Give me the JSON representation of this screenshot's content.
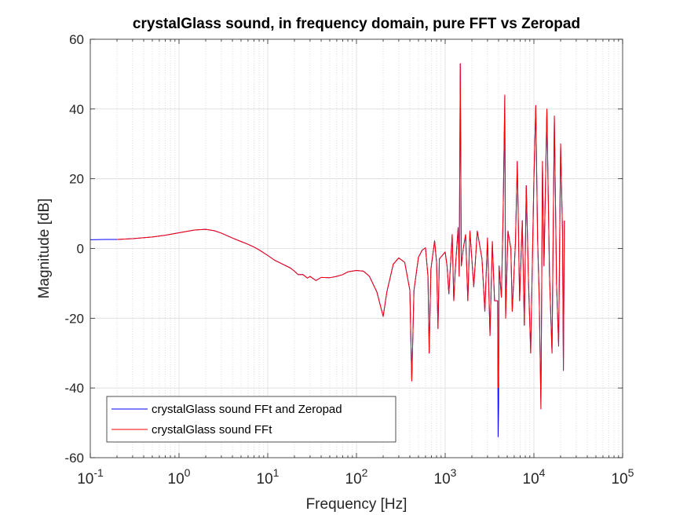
{
  "chart_data": {
    "type": "line",
    "title": "crystalGlass sound, in frequency domain, pure FFT vs Zeropad",
    "xlabel": "Frequency [Hz]",
    "ylabel": "Magnitude [dB]",
    "x_scale": "log",
    "xlim": [
      0.1,
      100000
    ],
    "ylim": [
      -60,
      60
    ],
    "x_ticks": [
      {
        "value": 0.1,
        "base": "10",
        "exp": "-1"
      },
      {
        "value": 1,
        "base": "10",
        "exp": "0"
      },
      {
        "value": 10,
        "base": "10",
        "exp": "1"
      },
      {
        "value": 100,
        "base": "10",
        "exp": "2"
      },
      {
        "value": 1000,
        "base": "10",
        "exp": "3"
      },
      {
        "value": 10000,
        "base": "10",
        "exp": "4"
      },
      {
        "value": 100000,
        "base": "10",
        "exp": "5"
      }
    ],
    "y_ticks": [
      {
        "value": -60,
        "label": "-60"
      },
      {
        "value": -40,
        "label": "-40"
      },
      {
        "value": -20,
        "label": "-20"
      },
      {
        "value": 0,
        "label": "0"
      },
      {
        "value": 20,
        "label": "20"
      },
      {
        "value": 40,
        "label": "40"
      },
      {
        "value": 60,
        "label": "60"
      }
    ],
    "grid": true,
    "minor_grid": true,
    "legend_position": "bottom-left",
    "series": [
      {
        "name": "crystalGlass sound FFt and Zeropad",
        "color": "#0000ff",
        "points": [
          [
            0.1,
            2.5
          ],
          [
            0.15,
            2.6
          ],
          [
            0.2,
            2.6
          ],
          [
            0.3,
            2.8
          ],
          [
            0.5,
            3.3
          ],
          [
            0.7,
            3.8
          ],
          [
            1,
            4.5
          ],
          [
            1.5,
            5.3
          ],
          [
            2,
            5.5
          ],
          [
            2.5,
            5.1
          ],
          [
            3,
            4.4
          ],
          [
            4,
            3
          ],
          [
            5,
            2
          ],
          [
            6,
            1.2
          ],
          [
            7,
            0.4
          ],
          [
            8,
            -0.4
          ],
          [
            10,
            -2
          ],
          [
            12,
            -3.4
          ],
          [
            15,
            -4.6
          ],
          [
            18,
            -5.6
          ],
          [
            20,
            -6.5
          ],
          [
            22,
            -7.5
          ],
          [
            25,
            -7.5
          ],
          [
            28,
            -8.5
          ],
          [
            30,
            -8
          ],
          [
            35,
            -9.2
          ],
          [
            40,
            -8.3
          ],
          [
            50,
            -8.4
          ],
          [
            60,
            -8
          ],
          [
            70,
            -7.5
          ],
          [
            80,
            -6.7
          ],
          [
            100,
            -6.3
          ],
          [
            120,
            -6.5
          ],
          [
            140,
            -8
          ],
          [
            170,
            -12.5
          ],
          [
            200,
            -19.5
          ],
          [
            220,
            -12.5
          ],
          [
            260,
            -4.5
          ],
          [
            300,
            -2.7
          ],
          [
            350,
            -4
          ],
          [
            400,
            -12
          ],
          [
            420,
            -38
          ],
          [
            445,
            -12
          ],
          [
            500,
            -2.5
          ],
          [
            550,
            -0.5
          ],
          [
            600,
            0.2
          ],
          [
            640,
            -8
          ],
          [
            660,
            -30
          ],
          [
            690,
            -6
          ],
          [
            760,
            2.2
          ],
          [
            800,
            -4
          ],
          [
            830,
            -23
          ],
          [
            860,
            -3
          ],
          [
            1000,
            -1
          ],
          [
            1050,
            -5
          ],
          [
            1100,
            -13
          ],
          [
            1200,
            4
          ],
          [
            1250,
            -15
          ],
          [
            1300,
            -6
          ],
          [
            1400,
            6
          ],
          [
            1440,
            -8
          ],
          [
            1480,
            53
          ],
          [
            1520,
            -5
          ],
          [
            1600,
            0
          ],
          [
            1700,
            4
          ],
          [
            1800,
            -15
          ],
          [
            1900,
            5
          ],
          [
            2100,
            -11
          ],
          [
            2300,
            5
          ],
          [
            2600,
            -3
          ],
          [
            2800,
            -18
          ],
          [
            3000,
            3
          ],
          [
            3200,
            -25
          ],
          [
            3400,
            2
          ],
          [
            3600,
            -15
          ],
          [
            3900,
            -15
          ],
          [
            3950,
            -54
          ],
          [
            4000,
            -45
          ],
          [
            4050,
            -5
          ],
          [
            4300,
            -14
          ],
          [
            4500,
            10
          ],
          [
            4700,
            44
          ],
          [
            4800,
            -20
          ],
          [
            5100,
            5
          ],
          [
            5500,
            0
          ],
          [
            5700,
            -18
          ],
          [
            6200,
            2
          ],
          [
            6500,
            25
          ],
          [
            6900,
            -15
          ],
          [
            7400,
            8
          ],
          [
            7800,
            -22
          ],
          [
            8200,
            18
          ],
          [
            8700,
            -10
          ],
          [
            9200,
            -30
          ],
          [
            10000,
            20
          ],
          [
            10500,
            41
          ],
          [
            11000,
            3
          ],
          [
            11500,
            -15
          ],
          [
            12000,
            -46
          ],
          [
            12500,
            25
          ],
          [
            13000,
            -5
          ],
          [
            14000,
            40
          ],
          [
            15000,
            -8
          ],
          [
            16000,
            -30
          ],
          [
            17000,
            38
          ],
          [
            18000,
            -10
          ],
          [
            19000,
            -28
          ],
          [
            20000,
            30
          ],
          [
            21000,
            5
          ],
          [
            21500,
            -35
          ],
          [
            22050,
            8
          ]
        ]
      },
      {
        "name": "crystalGlass sound FFt",
        "color": "#ff0000",
        "points": [
          [
            0.2,
            2.6
          ],
          [
            0.3,
            2.8
          ],
          [
            0.5,
            3.3
          ],
          [
            0.7,
            3.8
          ],
          [
            1,
            4.5
          ],
          [
            1.5,
            5.3
          ],
          [
            2,
            5.5
          ],
          [
            2.5,
            5.1
          ],
          [
            3,
            4.4
          ],
          [
            4,
            3
          ],
          [
            5,
            2
          ],
          [
            6,
            1.2
          ],
          [
            7,
            0.4
          ],
          [
            8,
            -0.4
          ],
          [
            10,
            -2
          ],
          [
            12,
            -3.4
          ],
          [
            15,
            -4.6
          ],
          [
            18,
            -5.6
          ],
          [
            20,
            -6.5
          ],
          [
            22,
            -7.5
          ],
          [
            25,
            -7.5
          ],
          [
            28,
            -8.5
          ],
          [
            30,
            -8
          ],
          [
            35,
            -9.2
          ],
          [
            40,
            -8.3
          ],
          [
            50,
            -8.4
          ],
          [
            60,
            -8
          ],
          [
            70,
            -7.5
          ],
          [
            80,
            -6.7
          ],
          [
            100,
            -6.3
          ],
          [
            120,
            -6.5
          ],
          [
            140,
            -8
          ],
          [
            170,
            -12.5
          ],
          [
            200,
            -19.5
          ],
          [
            220,
            -12.5
          ],
          [
            260,
            -4.5
          ],
          [
            300,
            -2.7
          ],
          [
            350,
            -4
          ],
          [
            400,
            -12
          ],
          [
            420,
            -38
          ],
          [
            445,
            -12
          ],
          [
            500,
            -2.5
          ],
          [
            550,
            -0.5
          ],
          [
            600,
            0.2
          ],
          [
            640,
            -8
          ],
          [
            660,
            -30
          ],
          [
            690,
            -6
          ],
          [
            760,
            2.2
          ],
          [
            800,
            -4
          ],
          [
            830,
            -23
          ],
          [
            860,
            -3
          ],
          [
            1000,
            -1
          ],
          [
            1050,
            -5
          ],
          [
            1100,
            -13
          ],
          [
            1200,
            4
          ],
          [
            1250,
            -15
          ],
          [
            1300,
            -6
          ],
          [
            1400,
            6
          ],
          [
            1440,
            -8
          ],
          [
            1480,
            53
          ],
          [
            1520,
            -5
          ],
          [
            1600,
            0
          ],
          [
            1700,
            4
          ],
          [
            1800,
            -15
          ],
          [
            1900,
            5
          ],
          [
            2100,
            -11
          ],
          [
            2300,
            5
          ],
          [
            2600,
            -3
          ],
          [
            2800,
            -18
          ],
          [
            3000,
            3
          ],
          [
            3200,
            -25
          ],
          [
            3400,
            2
          ],
          [
            3600,
            -15
          ],
          [
            3900,
            -15
          ],
          [
            3950,
            -40
          ],
          [
            4000,
            -36
          ],
          [
            4050,
            -5
          ],
          [
            4300,
            -14
          ],
          [
            4500,
            10
          ],
          [
            4700,
            44
          ],
          [
            4800,
            -20
          ],
          [
            5100,
            5
          ],
          [
            5500,
            0
          ],
          [
            5700,
            -18
          ],
          [
            6200,
            2
          ],
          [
            6500,
            25
          ],
          [
            6900,
            -15
          ],
          [
            7400,
            8
          ],
          [
            7800,
            -22
          ],
          [
            8200,
            18
          ],
          [
            8700,
            -10
          ],
          [
            9200,
            -30
          ],
          [
            10000,
            20
          ],
          [
            10500,
            41
          ],
          [
            11000,
            3
          ],
          [
            11500,
            -15
          ],
          [
            12000,
            -46
          ],
          [
            12500,
            25
          ],
          [
            13000,
            -5
          ],
          [
            14000,
            40
          ],
          [
            15000,
            -8
          ],
          [
            16000,
            -30
          ],
          [
            17000,
            38
          ],
          [
            18000,
            -10
          ],
          [
            19000,
            -28
          ],
          [
            20000,
            30
          ],
          [
            21000,
            5
          ],
          [
            21500,
            -35
          ],
          [
            22050,
            8
          ]
        ]
      }
    ]
  }
}
